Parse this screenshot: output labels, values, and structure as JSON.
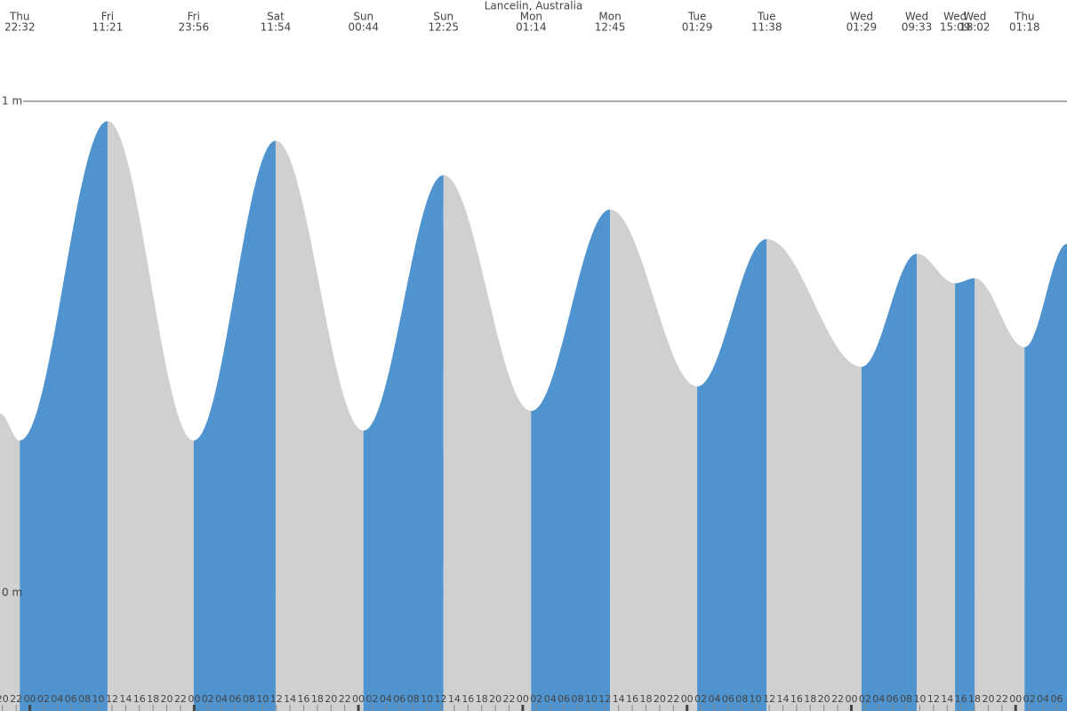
{
  "chart_data": {
    "type": "area",
    "title": "Lancelin, Australia",
    "x": [
      -4.36,
      -1.47,
      11.35,
      23.93,
      35.9,
      48.73,
      60.42,
      73.23,
      84.75,
      97.48,
      107.63,
      121.48,
      129.55,
      135.15,
      138.03,
      145.3,
      151.5
    ],
    "days": [
      null,
      "Thu",
      "Fri",
      "Fri",
      "Sat",
      "Sun",
      "Sun",
      "Mon",
      "Mon",
      "Tue",
      "Tue",
      "Wed",
      "Wed",
      "Wed",
      "Wed",
      "Thu",
      null
    ],
    "times": [
      null,
      "22:32",
      "11:21",
      "23:56",
      "11:54",
      "00:44",
      "12:25",
      "01:14",
      "12:45",
      "01:29",
      "11:38",
      "01:29",
      "09:33",
      "15:09",
      "18:02",
      "01:18",
      null
    ],
    "values": [
      0.365,
      0.31,
      0.96,
      0.31,
      0.92,
      0.33,
      0.85,
      0.37,
      0.78,
      0.42,
      0.72,
      0.46,
      0.69,
      0.63,
      0.64,
      0.5,
      0.71
    ],
    "rising_color": "#4f93cf",
    "falling_color": "#d0d0d0",
    "xlim": [
      -4.36,
      151.5
    ],
    "ylim": [
      -0.24,
      1.206
    ],
    "yticks": [
      {
        "value": 0,
        "label": "0 m"
      },
      {
        "value": 1,
        "label": "1 m"
      }
    ],
    "xticks": [
      {
        "value": -4,
        "label": "20"
      },
      {
        "value": -2,
        "label": "22"
      },
      {
        "value": 0,
        "label": "00"
      },
      {
        "value": 2,
        "label": "02"
      },
      {
        "value": 4,
        "label": "04"
      },
      {
        "value": 6,
        "label": "06"
      },
      {
        "value": 8,
        "label": "08"
      },
      {
        "value": 10,
        "label": "10"
      },
      {
        "value": 12,
        "label": "12"
      },
      {
        "value": 14,
        "label": "14"
      },
      {
        "value": 16,
        "label": "16"
      },
      {
        "value": 18,
        "label": "18"
      },
      {
        "value": 20,
        "label": "20"
      },
      {
        "value": 22,
        "label": "22"
      },
      {
        "value": 24,
        "label": "00"
      },
      {
        "value": 26,
        "label": "02"
      },
      {
        "value": 28,
        "label": "04"
      },
      {
        "value": 30,
        "label": "06"
      },
      {
        "value": 32,
        "label": "08"
      },
      {
        "value": 34,
        "label": "10"
      },
      {
        "value": 36,
        "label": "12"
      },
      {
        "value": 38,
        "label": "14"
      },
      {
        "value": 40,
        "label": "16"
      },
      {
        "value": 42,
        "label": "18"
      },
      {
        "value": 44,
        "label": "20"
      },
      {
        "value": 46,
        "label": "22"
      },
      {
        "value": 48,
        "label": "00"
      },
      {
        "value": 50,
        "label": "02"
      },
      {
        "value": 52,
        "label": "04"
      },
      {
        "value": 54,
        "label": "06"
      },
      {
        "value": 56,
        "label": "08"
      },
      {
        "value": 58,
        "label": "10"
      },
      {
        "value": 60,
        "label": "12"
      },
      {
        "value": 62,
        "label": "14"
      },
      {
        "value": 64,
        "label": "16"
      },
      {
        "value": 66,
        "label": "18"
      },
      {
        "value": 68,
        "label": "20"
      },
      {
        "value": 70,
        "label": "22"
      },
      {
        "value": 72,
        "label": "00"
      },
      {
        "value": 74,
        "label": "02"
      },
      {
        "value": 76,
        "label": "04"
      },
      {
        "value": 78,
        "label": "06"
      },
      {
        "value": 80,
        "label": "08"
      },
      {
        "value": 82,
        "label": "10"
      },
      {
        "value": 84,
        "label": "12"
      },
      {
        "value": 86,
        "label": "14"
      },
      {
        "value": 88,
        "label": "16"
      },
      {
        "value": 90,
        "label": "18"
      },
      {
        "value": 92,
        "label": "20"
      },
      {
        "value": 94,
        "label": "22"
      },
      {
        "value": 96,
        "label": "00"
      },
      {
        "value": 98,
        "label": "02"
      },
      {
        "value": 100,
        "label": "04"
      },
      {
        "value": 102,
        "label": "06"
      },
      {
        "value": 104,
        "label": "08"
      },
      {
        "value": 106,
        "label": "10"
      },
      {
        "value": 108,
        "label": "12"
      },
      {
        "value": 110,
        "label": "14"
      },
      {
        "value": 112,
        "label": "16"
      },
      {
        "value": 114,
        "label": "18"
      },
      {
        "value": 116,
        "label": "20"
      },
      {
        "value": 118,
        "label": "22"
      },
      {
        "value": 120,
        "label": "00"
      },
      {
        "value": 122,
        "label": "02"
      },
      {
        "value": 124,
        "label": "04"
      },
      {
        "value": 126,
        "label": "06"
      },
      {
        "value": 128,
        "label": "08"
      },
      {
        "value": 130,
        "label": "10"
      },
      {
        "value": 132,
        "label": "12"
      },
      {
        "value": 134,
        "label": "14"
      },
      {
        "value": 136,
        "label": "16"
      },
      {
        "value": 138,
        "label": "18"
      },
      {
        "value": 140,
        "label": "20"
      },
      {
        "value": 142,
        "label": "22"
      },
      {
        "value": 144,
        "label": "00"
      },
      {
        "value": 146,
        "label": "02"
      },
      {
        "value": 148,
        "label": "04"
      },
      {
        "value": 150,
        "label": "06"
      }
    ]
  }
}
